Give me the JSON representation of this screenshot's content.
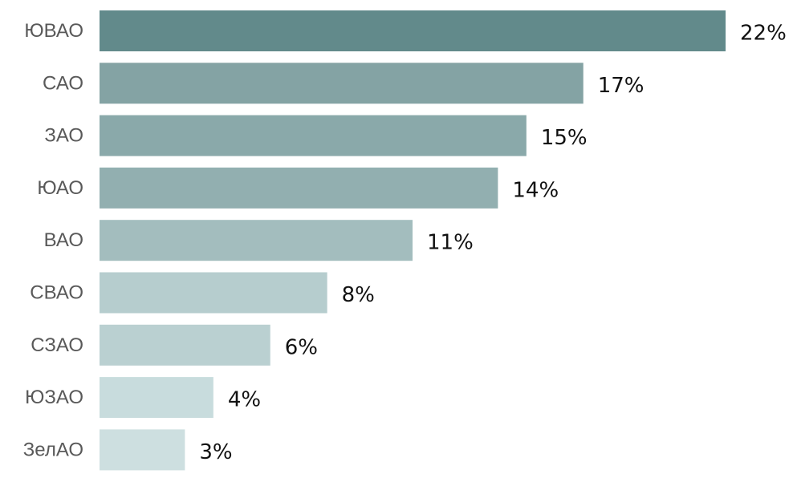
{
  "chart_data": {
    "type": "bar",
    "orientation": "horizontal",
    "categories": [
      "ЮВАО",
      "САО",
      "ЗАО",
      "ЮАО",
      "ВАО",
      "СВАО",
      "СЗАО",
      "ЮЗАО",
      "ЗелАО"
    ],
    "values": [
      22,
      17,
      15,
      14,
      11,
      8,
      6,
      4,
      3
    ],
    "value_labels": [
      "22%",
      "17%",
      "15%",
      "14%",
      "11%",
      "8%",
      "6%",
      "4%",
      "3%"
    ],
    "unit": "%",
    "title": "",
    "xlabel": "",
    "ylabel": "",
    "xlim": [
      0,
      22
    ],
    "grid": false,
    "legend": "none",
    "colors": [
      "#628a8b",
      "#84a3a4",
      "#8aa9aa",
      "#92afb0",
      "#a3bdbe",
      "#b6cdce",
      "#bad0d1",
      "#c8dcdd",
      "#cddfe0"
    ]
  }
}
